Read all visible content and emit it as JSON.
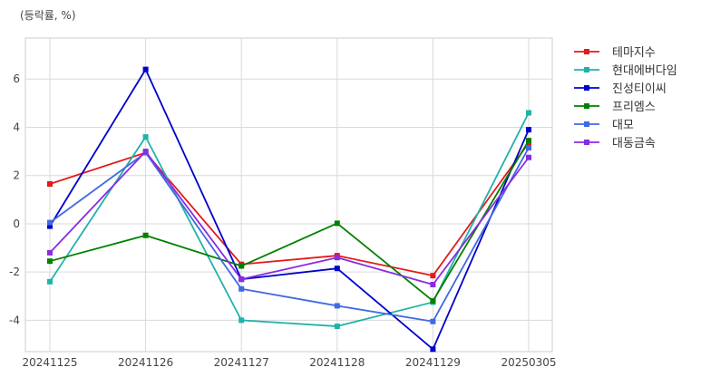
{
  "chart_data": {
    "type": "line",
    "unit_label": "(등락률, %)",
    "categories": [
      "20241125",
      "20241126",
      "20241127",
      "20241128",
      "20241129",
      "20250305"
    ],
    "ylim": [
      -5.3,
      7.7
    ],
    "yticks": [
      -4,
      -2,
      0,
      2,
      4,
      6
    ],
    "grid": true,
    "legend_position": "right",
    "series": [
      {
        "name": "테마지수",
        "color": "#e31a1c",
        "values": [
          1.65,
          2.95,
          -1.68,
          -1.32,
          -2.15,
          3.35
        ]
      },
      {
        "name": "현대에버다임",
        "color": "#20b2aa",
        "values": [
          -2.4,
          3.6,
          -4.0,
          -4.25,
          -3.25,
          4.6
        ]
      },
      {
        "name": "진성티이씨",
        "color": "#0000cd",
        "values": [
          -0.1,
          6.4,
          -2.3,
          -1.85,
          -5.2,
          3.9
        ]
      },
      {
        "name": "프리엠스",
        "color": "#008000",
        "values": [
          -1.55,
          -0.48,
          -1.75,
          0.02,
          -3.2,
          3.45
        ]
      },
      {
        "name": "대모",
        "color": "#4169e1",
        "values": [
          0.05,
          2.95,
          -2.7,
          -3.4,
          -4.05,
          3.15
        ]
      },
      {
        "name": "대동금속",
        "color": "#8a2be2",
        "values": [
          -1.2,
          3.0,
          -2.3,
          -1.4,
          -2.52,
          2.75
        ]
      }
    ]
  }
}
